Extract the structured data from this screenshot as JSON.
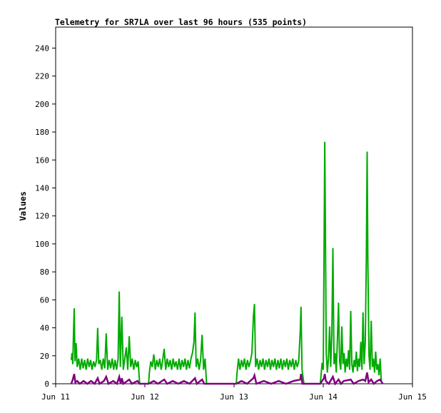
{
  "chart_data": {
    "type": "line",
    "title": "Telemetry for SR7LA over last 96 hours (535 points)",
    "xlabel": "",
    "ylabel": "Values",
    "x_ticks": [
      "Jun 11",
      "Jun 12",
      "Jun 13",
      "Jun 14",
      "Jun 15"
    ],
    "y_ticks": [
      0,
      20,
      40,
      60,
      80,
      100,
      120,
      140,
      160,
      180,
      200,
      220,
      240
    ],
    "xlim_hours": [
      0,
      96
    ],
    "ylim": [
      0,
      255
    ],
    "grid": false,
    "legend": "none",
    "series": [
      {
        "color": "#00aa00",
        "points": [
          [
            4.2,
            17
          ],
          [
            4.4,
            22
          ],
          [
            4.6,
            14
          ],
          [
            4.8,
            36
          ],
          [
            5.0,
            54
          ],
          [
            5.2,
            16
          ],
          [
            5.5,
            29
          ],
          [
            5.8,
            12
          ],
          [
            6.2,
            18
          ],
          [
            6.6,
            10
          ],
          [
            7.0,
            18
          ],
          [
            7.4,
            11
          ],
          [
            7.8,
            17
          ],
          [
            8.2,
            10
          ],
          [
            8.6,
            18
          ],
          [
            9.0,
            12
          ],
          [
            9.4,
            17
          ],
          [
            9.8,
            10
          ],
          [
            10.2,
            16
          ],
          [
            10.6,
            12
          ],
          [
            11.0,
            17
          ],
          [
            11.3,
            40
          ],
          [
            11.6,
            14
          ],
          [
            12.0,
            17
          ],
          [
            12.4,
            10
          ],
          [
            12.8,
            18
          ],
          [
            13.2,
            11
          ],
          [
            13.6,
            36
          ],
          [
            14.0,
            10
          ],
          [
            14.4,
            17
          ],
          [
            14.8,
            11
          ],
          [
            15.2,
            18
          ],
          [
            15.6,
            10
          ],
          [
            16.0,
            17
          ],
          [
            16.4,
            10
          ],
          [
            16.8,
            18
          ],
          [
            17.1,
            66
          ],
          [
            17.4,
            12
          ],
          [
            17.8,
            48
          ],
          [
            18.2,
            10
          ],
          [
            18.6,
            18
          ],
          [
            19.0,
            26
          ],
          [
            19.4,
            10
          ],
          [
            19.8,
            34
          ],
          [
            20.2,
            12
          ],
          [
            20.6,
            18
          ],
          [
            21.0,
            10
          ],
          [
            21.4,
            17
          ],
          [
            21.8,
            12
          ],
          [
            22.2,
            16
          ],
          [
            22.6,
            0
          ],
          [
            25.0,
            0
          ],
          [
            25.2,
            8
          ],
          [
            25.6,
            16
          ],
          [
            26.0,
            12
          ],
          [
            26.4,
            21
          ],
          [
            26.8,
            10
          ],
          [
            27.2,
            17
          ],
          [
            27.6,
            12
          ],
          [
            28.0,
            18
          ],
          [
            28.4,
            10
          ],
          [
            28.8,
            17
          ],
          [
            29.2,
            25
          ],
          [
            29.6,
            10
          ],
          [
            30.0,
            18
          ],
          [
            30.4,
            12
          ],
          [
            30.8,
            17
          ],
          [
            31.2,
            10
          ],
          [
            31.6,
            18
          ],
          [
            32.0,
            12
          ],
          [
            32.4,
            16
          ],
          [
            32.8,
            10
          ],
          [
            33.2,
            18
          ],
          [
            33.6,
            10
          ],
          [
            34.0,
            17
          ],
          [
            34.4,
            12
          ],
          [
            34.8,
            18
          ],
          [
            35.2,
            10
          ],
          [
            35.6,
            17
          ],
          [
            36.0,
            11
          ],
          [
            36.4,
            18
          ],
          [
            36.8,
            22
          ],
          [
            37.2,
            30
          ],
          [
            37.5,
            51
          ],
          [
            37.8,
            12
          ],
          [
            38.2,
            18
          ],
          [
            38.6,
            10
          ],
          [
            39.0,
            17
          ],
          [
            39.4,
            35
          ],
          [
            39.8,
            10
          ],
          [
            40.2,
            18
          ],
          [
            40.6,
            0
          ],
          [
            48.6,
            0
          ],
          [
            48.8,
            8
          ],
          [
            49.2,
            18
          ],
          [
            49.6,
            10
          ],
          [
            50.0,
            17
          ],
          [
            50.4,
            12
          ],
          [
            50.8,
            18
          ],
          [
            51.2,
            10
          ],
          [
            51.6,
            17
          ],
          [
            52.0,
            12
          ],
          [
            52.4,
            16
          ],
          [
            52.8,
            22
          ],
          [
            53.2,
            48
          ],
          [
            53.5,
            57
          ],
          [
            53.8,
            12
          ],
          [
            54.2,
            18
          ],
          [
            54.6,
            10
          ],
          [
            55.0,
            17
          ],
          [
            55.4,
            12
          ],
          [
            55.8,
            18
          ],
          [
            56.2,
            10
          ],
          [
            56.6,
            17
          ],
          [
            57.0,
            12
          ],
          [
            57.4,
            18
          ],
          [
            57.8,
            10
          ],
          [
            58.2,
            17
          ],
          [
            58.6,
            12
          ],
          [
            59.0,
            18
          ],
          [
            59.4,
            10
          ],
          [
            59.8,
            17
          ],
          [
            60.2,
            11
          ],
          [
            60.6,
            18
          ],
          [
            61.0,
            10
          ],
          [
            61.4,
            17
          ],
          [
            61.8,
            12
          ],
          [
            62.2,
            18
          ],
          [
            62.6,
            10
          ],
          [
            63.0,
            17
          ],
          [
            63.4,
            12
          ],
          [
            63.8,
            18
          ],
          [
            64.2,
            10
          ],
          [
            64.6,
            17
          ],
          [
            65.0,
            12
          ],
          [
            65.4,
            16
          ],
          [
            65.8,
            37
          ],
          [
            66.0,
            55
          ],
          [
            66.3,
            10
          ],
          [
            66.8,
            0
          ],
          [
            71.2,
            0
          ],
          [
            71.4,
            6
          ],
          [
            71.7,
            15
          ],
          [
            72.0,
            10
          ],
          [
            72.2,
            86
          ],
          [
            72.4,
            173
          ],
          [
            72.6,
            105
          ],
          [
            72.8,
            22
          ],
          [
            73.1,
            8
          ],
          [
            73.4,
            18
          ],
          [
            73.7,
            41
          ],
          [
            74.0,
            12
          ],
          [
            74.3,
            35
          ],
          [
            74.6,
            97
          ],
          [
            74.9,
            14
          ],
          [
            75.2,
            22
          ],
          [
            75.5,
            8
          ],
          [
            75.8,
            31
          ],
          [
            76.1,
            58
          ],
          [
            76.4,
            16
          ],
          [
            76.7,
            10
          ],
          [
            77.0,
            41
          ],
          [
            77.3,
            14
          ],
          [
            77.6,
            22
          ],
          [
            77.9,
            8
          ],
          [
            78.2,
            18
          ],
          [
            78.5,
            12
          ],
          [
            78.8,
            24
          ],
          [
            79.1,
            10
          ],
          [
            79.4,
            52
          ],
          [
            79.7,
            14
          ],
          [
            80.0,
            8
          ],
          [
            80.3,
            17
          ],
          [
            80.6,
            12
          ],
          [
            80.9,
            23
          ],
          [
            81.2,
            9
          ],
          [
            81.5,
            18
          ],
          [
            81.8,
            12
          ],
          [
            82.1,
            30
          ],
          [
            82.4,
            10
          ],
          [
            82.7,
            51
          ],
          [
            83.0,
            14
          ],
          [
            83.3,
            30
          ],
          [
            83.6,
            91
          ],
          [
            83.8,
            166
          ],
          [
            84.0,
            88
          ],
          [
            84.3,
            20
          ],
          [
            84.6,
            10
          ],
          [
            84.9,
            45
          ],
          [
            85.2,
            12
          ],
          [
            85.5,
            18
          ],
          [
            85.8,
            8
          ],
          [
            86.1,
            23
          ],
          [
            86.4,
            10
          ],
          [
            86.7,
            14
          ],
          [
            87.0,
            6
          ],
          [
            87.3,
            18
          ],
          [
            87.6,
            2
          ],
          [
            88.0,
            0
          ]
        ]
      },
      {
        "color": "#800080",
        "points": [
          [
            4.2,
            0
          ],
          [
            4.6,
            3
          ],
          [
            5.0,
            7
          ],
          [
            5.3,
            1
          ],
          [
            5.8,
            2
          ],
          [
            6.5,
            0
          ],
          [
            7.5,
            2
          ],
          [
            8.5,
            0
          ],
          [
            9.5,
            2
          ],
          [
            10.5,
            0
          ],
          [
            11.3,
            4
          ],
          [
            11.8,
            0
          ],
          [
            13.0,
            2
          ],
          [
            13.6,
            5
          ],
          [
            14.2,
            0
          ],
          [
            15.5,
            2
          ],
          [
            16.5,
            0
          ],
          [
            17.1,
            5
          ],
          [
            17.5,
            0
          ],
          [
            17.8,
            4
          ],
          [
            18.2,
            0
          ],
          [
            19.8,
            3
          ],
          [
            20.5,
            0
          ],
          [
            22.0,
            2
          ],
          [
            22.6,
            0
          ],
          [
            25.0,
            0
          ],
          [
            26.4,
            2
          ],
          [
            27.5,
            0
          ],
          [
            29.2,
            3
          ],
          [
            30.0,
            0
          ],
          [
            31.5,
            2
          ],
          [
            33.0,
            0
          ],
          [
            34.5,
            2
          ],
          [
            36.0,
            0
          ],
          [
            37.5,
            4
          ],
          [
            38.0,
            0
          ],
          [
            39.4,
            3
          ],
          [
            40.0,
            0
          ],
          [
            40.6,
            0
          ],
          [
            48.6,
            0
          ],
          [
            50.0,
            2
          ],
          [
            51.5,
            0
          ],
          [
            53.2,
            4
          ],
          [
            53.5,
            6
          ],
          [
            54.0,
            0
          ],
          [
            56.0,
            2
          ],
          [
            58.0,
            0
          ],
          [
            60.0,
            2
          ],
          [
            62.0,
            0
          ],
          [
            64.0,
            2
          ],
          [
            65.8,
            3
          ],
          [
            66.0,
            7
          ],
          [
            66.4,
            0
          ],
          [
            66.8,
            0
          ],
          [
            71.2,
            0
          ],
          [
            72.2,
            4
          ],
          [
            72.4,
            7
          ],
          [
            72.7,
            2
          ],
          [
            73.5,
            0
          ],
          [
            74.6,
            5
          ],
          [
            75.2,
            0
          ],
          [
            76.1,
            3
          ],
          [
            76.8,
            0
          ],
          [
            77.5,
            2
          ],
          [
            79.4,
            3
          ],
          [
            80.2,
            0
          ],
          [
            81.5,
            2
          ],
          [
            82.7,
            3
          ],
          [
            83.3,
            2
          ],
          [
            83.8,
            8
          ],
          [
            84.2,
            1
          ],
          [
            84.9,
            3
          ],
          [
            85.6,
            0
          ],
          [
            86.5,
            2
          ],
          [
            87.3,
            3
          ],
          [
            88.0,
            0
          ]
        ]
      }
    ]
  }
}
